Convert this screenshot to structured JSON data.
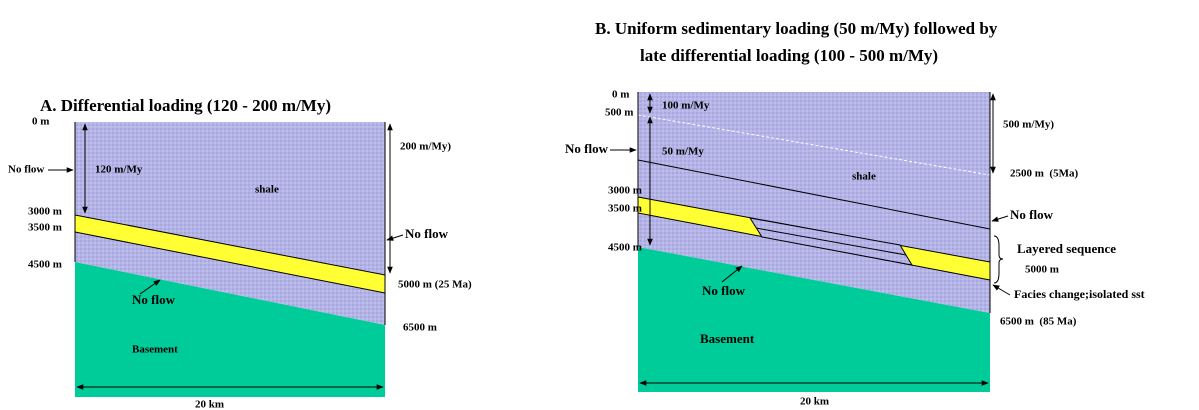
{
  "panel_a": {
    "title": "A. Differential loading (120 - 200 m/My)",
    "labels": [
      "0 m",
      "3000 m",
      "3500 m",
      "4500 m",
      "No flow",
      "120 m/My",
      "shale",
      "200 m/My)",
      "No flow",
      "5000 m (25 Ma)",
      "No flow",
      "6500 m",
      "Basement",
      "20 km"
    ]
  },
  "panel_b": {
    "title": [
      "B. Uniform sedimentary loading (50 m/My) followed by",
      "late differential loading (100 - 500 m/My)"
    ],
    "labels": [
      "0 m",
      "500 m",
      "100 m/My",
      "No flow",
      "50 m/My",
      "3000 m",
      "3500 m",
      "4500 m",
      "shale",
      "500 m/My)",
      "2500 m  (5Ma)",
      "No flow",
      "Layered sequence",
      "5000 m",
      "Facies change;isolated sst",
      "No flow",
      "6500 m  (85 Ma)",
      "Basement",
      "20 km"
    ]
  }
}
